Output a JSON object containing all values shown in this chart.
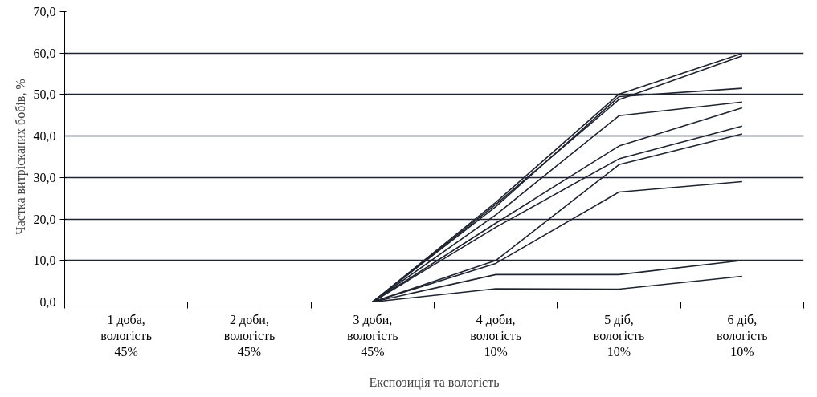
{
  "chart_data": {
    "type": "line",
    "xlabel": "Експозиція та вологість",
    "ylabel": "Частка витрісканих бобів, %",
    "categories": [
      "1 доба,\nвологість\n45%",
      "2 доби,\nвологість\n45%",
      "3 доби,\nвологість\n45%",
      "4 доби,\nвологість\n10%",
      "5 діб,\nвологість\n10%",
      "6 діб,\nвологість\n10%"
    ],
    "series": [
      {
        "color": "#1f2430",
        "values": [
          null,
          null,
          0,
          24,
          50.1,
          59.9
        ]
      },
      {
        "color": "#1f2430",
        "values": [
          null,
          null,
          0,
          23.5,
          48.8,
          59.3
        ]
      },
      {
        "color": "#1f2430",
        "values": [
          null,
          null,
          0,
          23,
          49.5,
          51.5
        ]
      },
      {
        "color": "#1f2430",
        "values": [
          null,
          null,
          0,
          21,
          44.9,
          48.2
        ]
      },
      {
        "color": "#1f2430",
        "values": [
          null,
          null,
          0,
          19,
          37.6,
          46.8
        ]
      },
      {
        "color": "#1f2430",
        "values": [
          null,
          null,
          0,
          18,
          34.5,
          42.4
        ]
      },
      {
        "color": "#1f2430",
        "values": [
          null,
          null,
          0,
          10,
          33.1,
          40.5
        ]
      },
      {
        "color": "#1f2430",
        "values": [
          null,
          null,
          0,
          9.3,
          26.5,
          29.0
        ]
      },
      {
        "color": "#1f2430",
        "values": [
          null,
          null,
          0,
          6.6,
          6.6,
          10.0
        ]
      },
      {
        "color": "#1f2430",
        "values": [
          null,
          null,
          0,
          3.2,
          3.1,
          6.2
        ]
      }
    ],
    "ylim": [
      0,
      70
    ],
    "yticks": [
      {
        "value": 0,
        "label": "0,0"
      },
      {
        "value": 10,
        "label": "10,0"
      },
      {
        "value": 20,
        "label": "20,0"
      },
      {
        "value": 30,
        "label": "30,0"
      },
      {
        "value": 40,
        "label": "40,0"
      },
      {
        "value": 50,
        "label": "50,0"
      },
      {
        "value": 60,
        "label": "60,0"
      },
      {
        "value": 70,
        "label": "70,0"
      }
    ],
    "grid": "y",
    "marker": "none",
    "line_style": "solid"
  }
}
